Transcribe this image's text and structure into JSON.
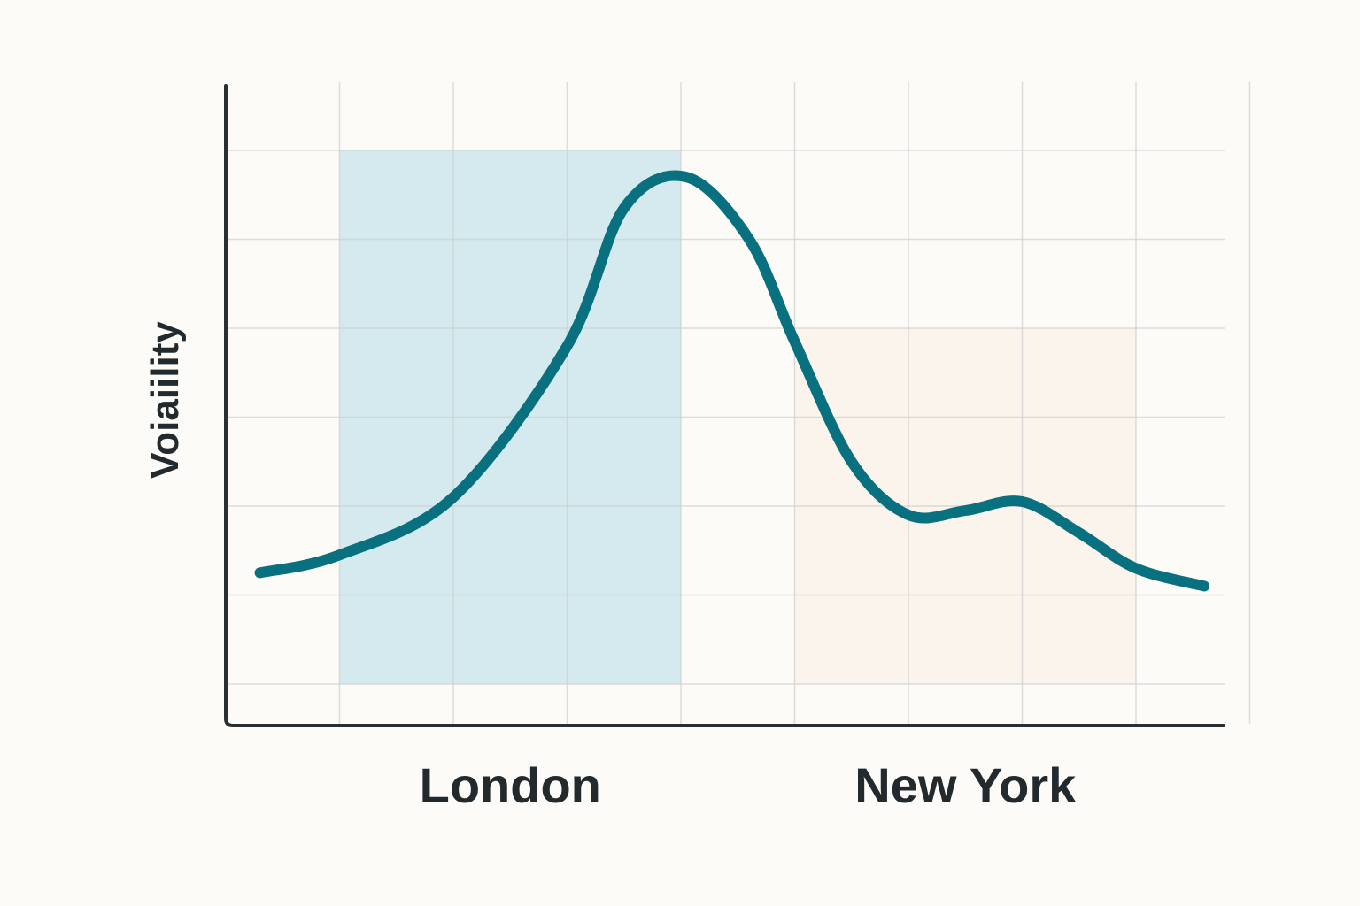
{
  "chart_data": {
    "type": "line",
    "title": "",
    "xlabel": "",
    "ylabel": "Voiaiility",
    "categories": [
      "London",
      "New York"
    ],
    "xlim": [
      0,
      9
    ],
    "ylim": [
      0,
      7
    ],
    "grid": true,
    "legend": "none",
    "sessions": [
      {
        "label": "London",
        "x_start": 1,
        "x_end": 4,
        "y_top": 6,
        "color": "#cde6ec"
      },
      {
        "label": "New York",
        "x_start": 5,
        "x_end": 8,
        "y_top": 4,
        "color": "#faf3ea"
      }
    ],
    "series": [
      {
        "color": "#08707f",
        "points": [
          [
            0.3,
            1.25
          ],
          [
            1.0,
            1.45
          ],
          [
            2.0,
            2.1
          ],
          [
            3.0,
            3.8
          ],
          [
            3.5,
            5.35
          ],
          [
            4.05,
            5.7
          ],
          [
            4.6,
            5.0
          ],
          [
            5.0,
            3.85
          ],
          [
            5.5,
            2.5
          ],
          [
            6.0,
            1.9
          ],
          [
            6.5,
            1.95
          ],
          [
            7.0,
            2.05
          ],
          [
            7.5,
            1.7
          ],
          [
            8.0,
            1.3
          ],
          [
            8.6,
            1.1
          ]
        ]
      }
    ]
  }
}
